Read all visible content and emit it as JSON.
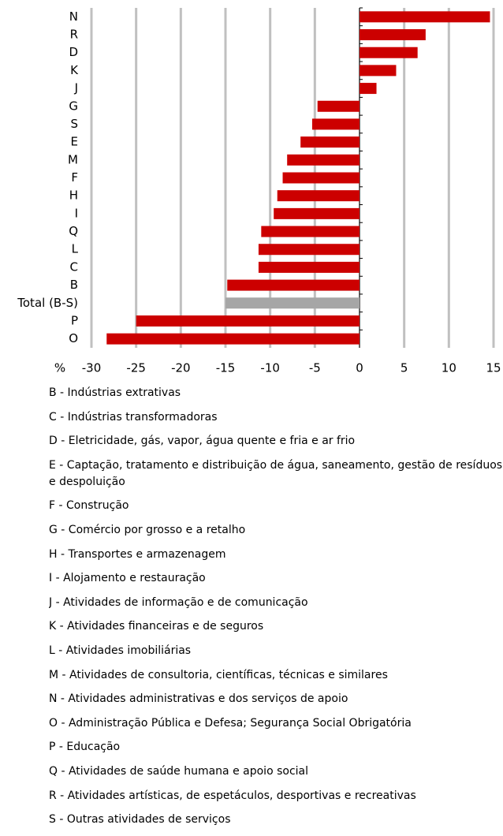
{
  "chart_data": {
    "type": "hbar",
    "categories": [
      "N",
      "R",
      "D",
      "K",
      "J",
      "G",
      "S",
      "E",
      "M",
      "F",
      "H",
      "I",
      "Q",
      "L",
      "C",
      "B",
      "Total (B-S)",
      "P",
      "O"
    ],
    "values": [
      14.6,
      7.4,
      6.5,
      4.1,
      1.9,
      -4.7,
      -5.3,
      -6.6,
      -8.1,
      -8.6,
      -9.2,
      -9.6,
      -11.0,
      -11.3,
      -11.3,
      -14.8,
      -15.0,
      -25.0,
      -28.3
    ],
    "colors": [
      "#cc0000",
      "#cc0000",
      "#cc0000",
      "#cc0000",
      "#cc0000",
      "#cc0000",
      "#cc0000",
      "#cc0000",
      "#cc0000",
      "#cc0000",
      "#cc0000",
      "#cc0000",
      "#cc0000",
      "#cc0000",
      "#cc0000",
      "#cc0000",
      "#a6a6a6",
      "#cc0000",
      "#cc0000"
    ],
    "x_label": "%",
    "xlim": [
      -30,
      15
    ],
    "xticks": [
      -30,
      -25,
      -20,
      -15,
      -10,
      -5,
      0,
      5,
      10,
      15
    ],
    "grid": true,
    "footnotes": [
      "B - Indústrias extrativas",
      "C - Indústrias transformadoras",
      "D - Eletricidade, gás, vapor, água quente e fria e ar frio",
      "E - Captação, tratamento e distribuição de água, saneamento, gestão de resíduos e despoluição",
      "F - Construção",
      "G - Comércio por grosso e a retalho",
      "H - Transportes e armazenagem",
      "I - Alojamento e restauração",
      "J - Atividades de informação e de comunicação",
      "K - Atividades financeiras e de seguros",
      "L - Atividades imobiliárias",
      "M - Atividades de consultoria, científicas, técnicas e similares",
      "N - Atividades administrativas e dos serviços de apoio",
      "O - Administração Pública e Defesa; Segurança Social Obrigatória",
      "P - Educação",
      "Q - Atividades de saúde humana e apoio social",
      "R - Atividades artísticas, de espetáculos, desportivas e recreativas",
      "S - Outras atividades de serviços"
    ]
  }
}
